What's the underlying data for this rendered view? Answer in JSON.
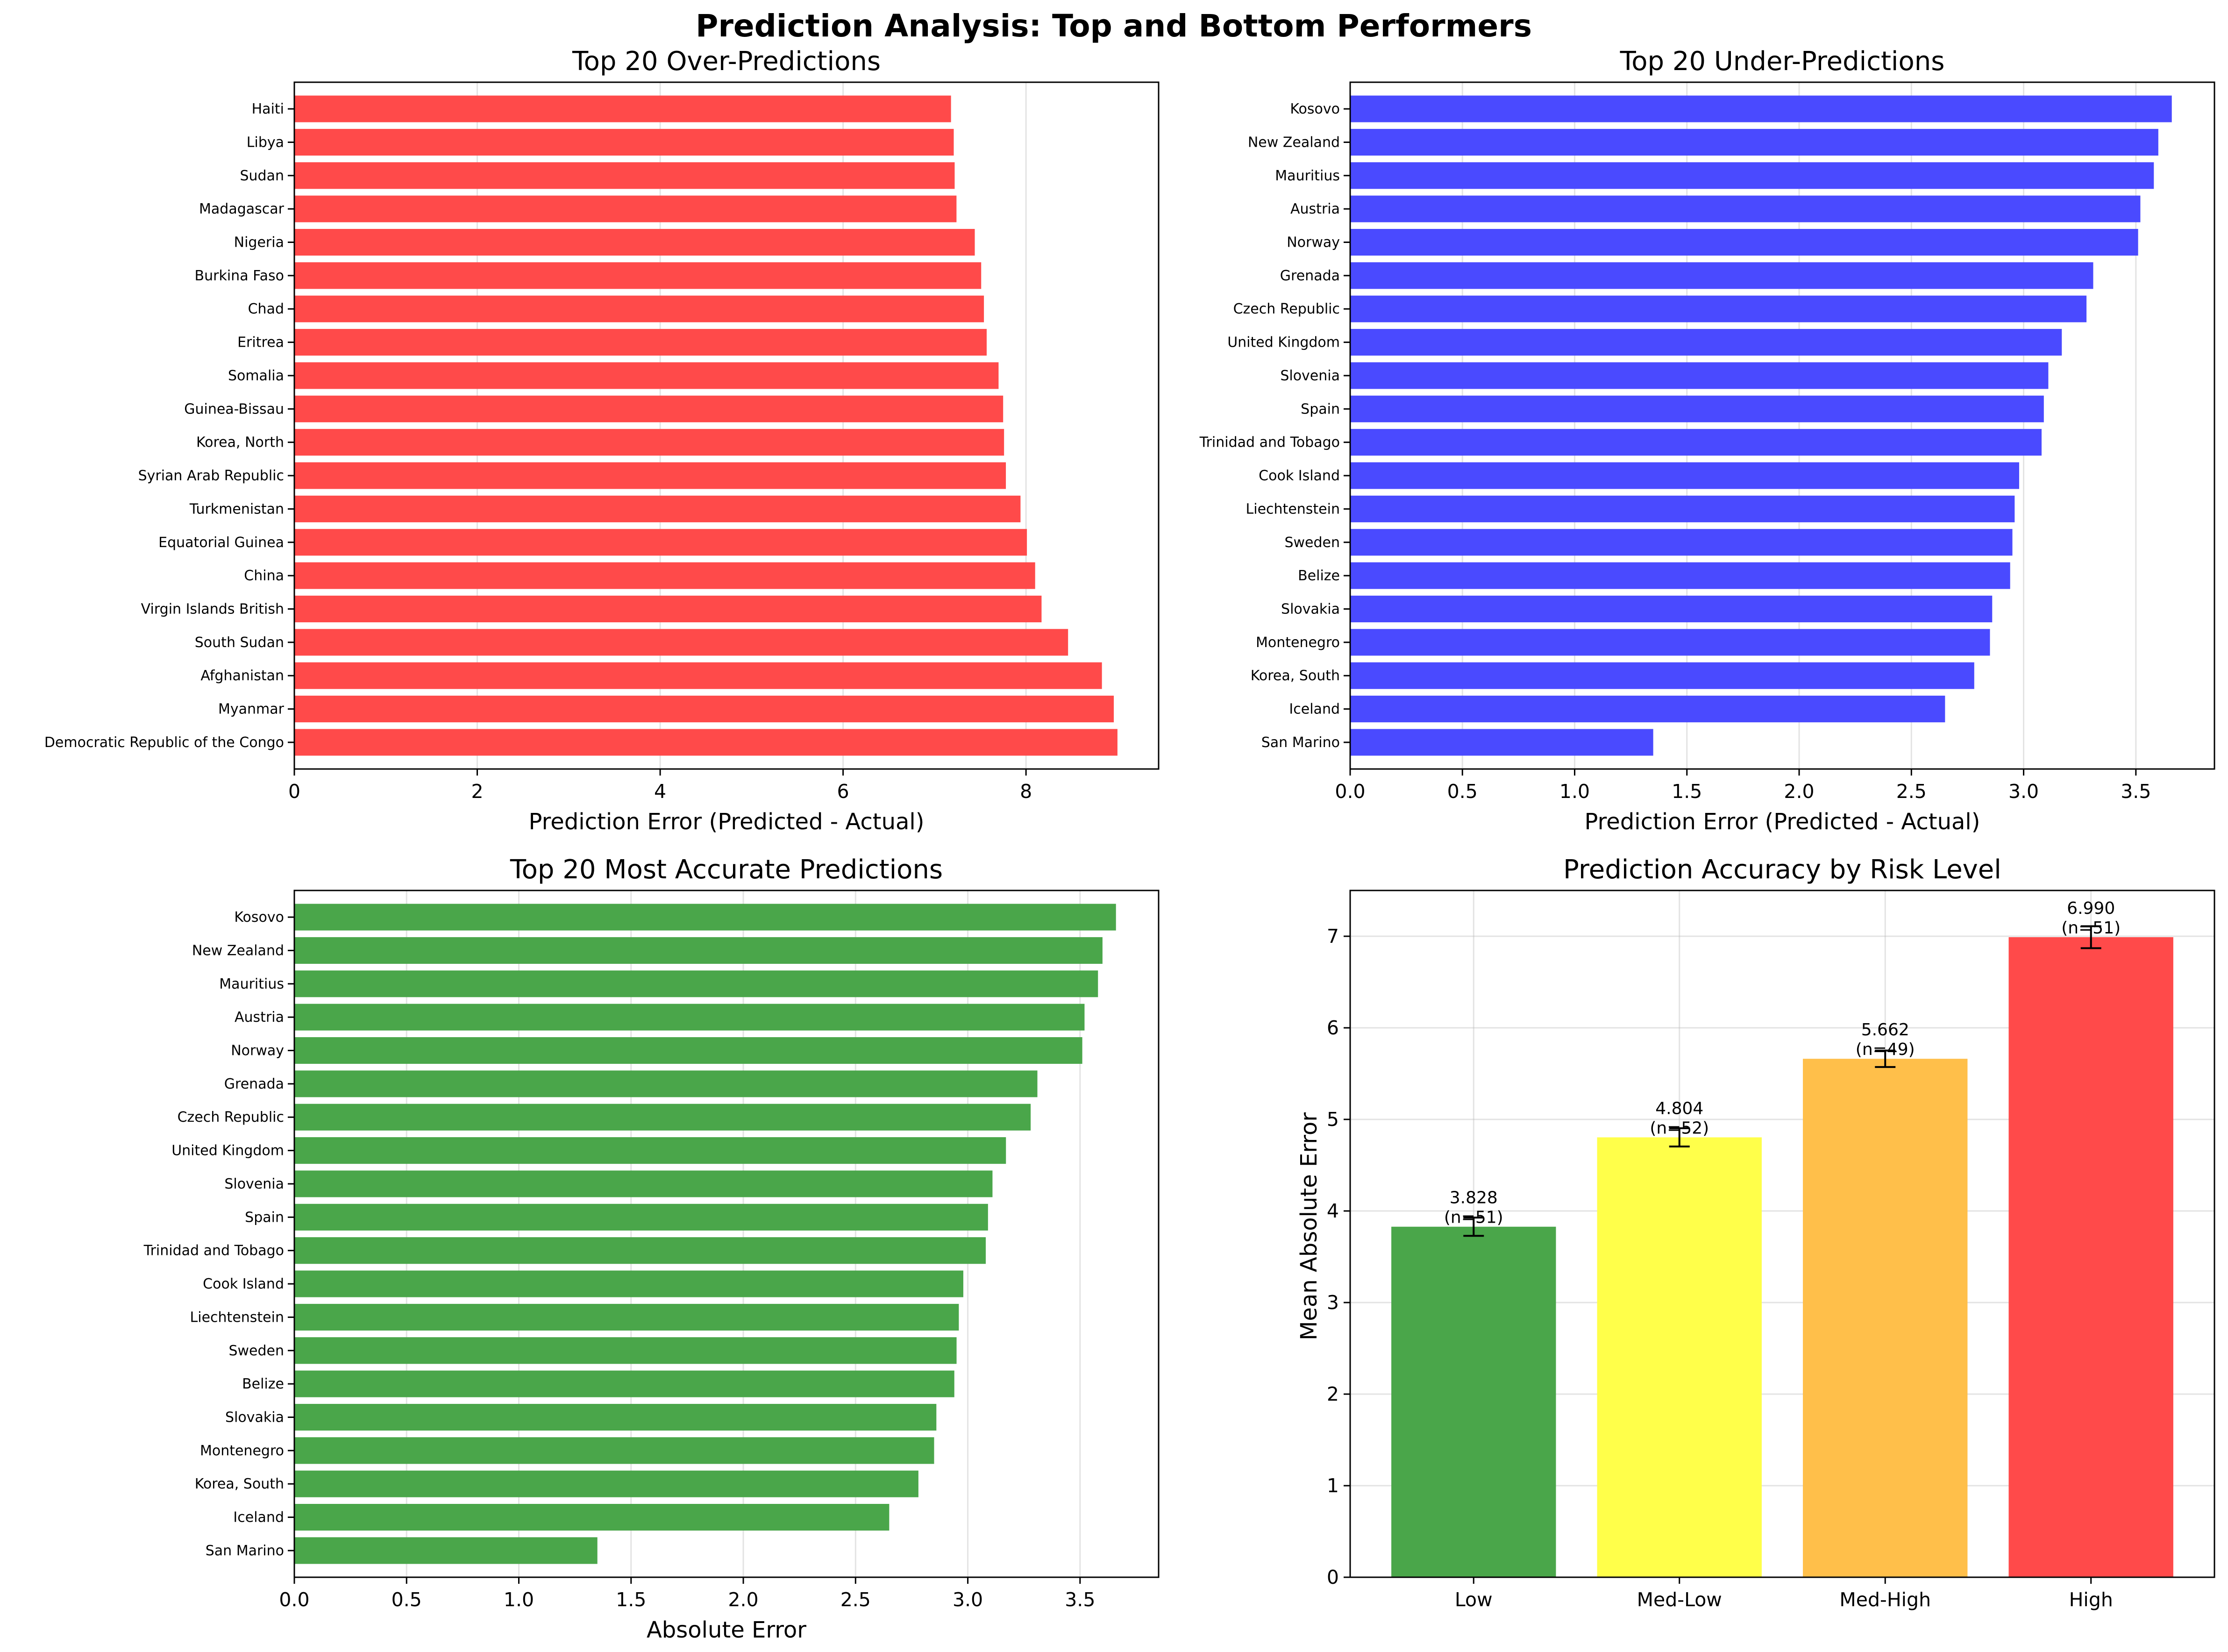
{
  "figure": {
    "suptitle": "Prediction Analysis: Top and Bottom Performers"
  },
  "chart_data": [
    {
      "type": "bar",
      "orientation": "horizontal",
      "title": "Top 20 Over-Predictions",
      "xlabel": "Prediction Error (Predicted - Actual)",
      "ylabel": "",
      "color": "#ff4a4a",
      "xlim": [
        0,
        9.45
      ],
      "xticks": [
        0,
        2,
        4,
        6,
        8
      ],
      "grid": "x",
      "categories": [
        "Democratic Republic of the Congo",
        "Myanmar",
        "Afghanistan",
        "South Sudan",
        "Virgin Islands British",
        "China",
        "Equatorial Guinea",
        "Turkmenistan",
        "Syrian Arab Republic",
        "Korea, North",
        "Guinea-Bissau",
        "Somalia",
        "Eritrea",
        "Chad",
        "Burkina Faso",
        "Nigeria",
        "Madagascar",
        "Sudan",
        "Libya",
        "Haiti"
      ],
      "values": [
        9.0,
        8.96,
        8.83,
        8.46,
        8.17,
        8.1,
        8.01,
        7.94,
        7.78,
        7.76,
        7.75,
        7.7,
        7.57,
        7.54,
        7.51,
        7.44,
        7.24,
        7.22,
        7.21,
        7.18
      ]
    },
    {
      "type": "bar",
      "orientation": "horizontal",
      "title": "Top 20 Under-Predictions",
      "xlabel": "Prediction Error (Predicted - Actual)",
      "ylabel": "",
      "color": "#4a4aff",
      "xlim": [
        0,
        3.85
      ],
      "xticks": [
        0.0,
        0.5,
        1.0,
        1.5,
        2.0,
        2.5,
        3.0,
        3.5
      ],
      "grid": "x",
      "categories": [
        "San Marino",
        "Iceland",
        "Korea, South",
        "Montenegro",
        "Slovakia",
        "Belize",
        "Sweden",
        "Liechtenstein",
        "Cook Island",
        "Trinidad and Tobago",
        "Spain",
        "Slovenia",
        "United Kingdom",
        "Czech Republic",
        "Grenada",
        "Norway",
        "Austria",
        "Mauritius",
        "New Zealand",
        "Kosovo"
      ],
      "values": [
        1.35,
        2.65,
        2.78,
        2.85,
        2.86,
        2.94,
        2.95,
        2.96,
        2.98,
        3.08,
        3.09,
        3.11,
        3.17,
        3.28,
        3.31,
        3.51,
        3.52,
        3.58,
        3.6,
        3.66
      ]
    },
    {
      "type": "bar",
      "orientation": "horizontal",
      "title": "Top 20 Most Accurate Predictions",
      "xlabel": "Absolute Error",
      "ylabel": "",
      "color": "#4aa64a",
      "xlim": [
        0,
        3.85
      ],
      "xticks": [
        0.0,
        0.5,
        1.0,
        1.5,
        2.0,
        2.5,
        3.0,
        3.5
      ],
      "grid": "x",
      "categories": [
        "San Marino",
        "Iceland",
        "Korea, South",
        "Montenegro",
        "Slovakia",
        "Belize",
        "Sweden",
        "Liechtenstein",
        "Cook Island",
        "Trinidad and Tobago",
        "Spain",
        "Slovenia",
        "United Kingdom",
        "Czech Republic",
        "Grenada",
        "Norway",
        "Austria",
        "Mauritius",
        "New Zealand",
        "Kosovo"
      ],
      "values": [
        1.35,
        2.65,
        2.78,
        2.85,
        2.86,
        2.94,
        2.95,
        2.96,
        2.98,
        3.08,
        3.09,
        3.11,
        3.17,
        3.28,
        3.31,
        3.51,
        3.52,
        3.58,
        3.6,
        3.66
      ]
    },
    {
      "type": "bar",
      "orientation": "vertical",
      "title": "Prediction Accuracy by Risk Level",
      "xlabel": "",
      "ylabel": "Mean Absolute Error",
      "ylim": [
        0,
        7.5
      ],
      "yticks": [
        0,
        1,
        2,
        3,
        4,
        5,
        6,
        7
      ],
      "grid": "both",
      "categories": [
        "Low",
        "Med-Low",
        "Med-High",
        "High"
      ],
      "values": [
        3.828,
        4.804,
        5.662,
        6.99
      ],
      "errors": [
        0.1,
        0.1,
        0.09,
        0.12
      ],
      "colors": [
        "#4aa64a",
        "#ffff4a",
        "#ffbf4a",
        "#ff4a4a"
      ],
      "value_labels": [
        "3.828",
        "4.804",
        "5.662",
        "6.990"
      ],
      "count_labels": [
        "(n=51)",
        "(n=52)",
        "(n=49)",
        "(n=51)"
      ]
    }
  ]
}
